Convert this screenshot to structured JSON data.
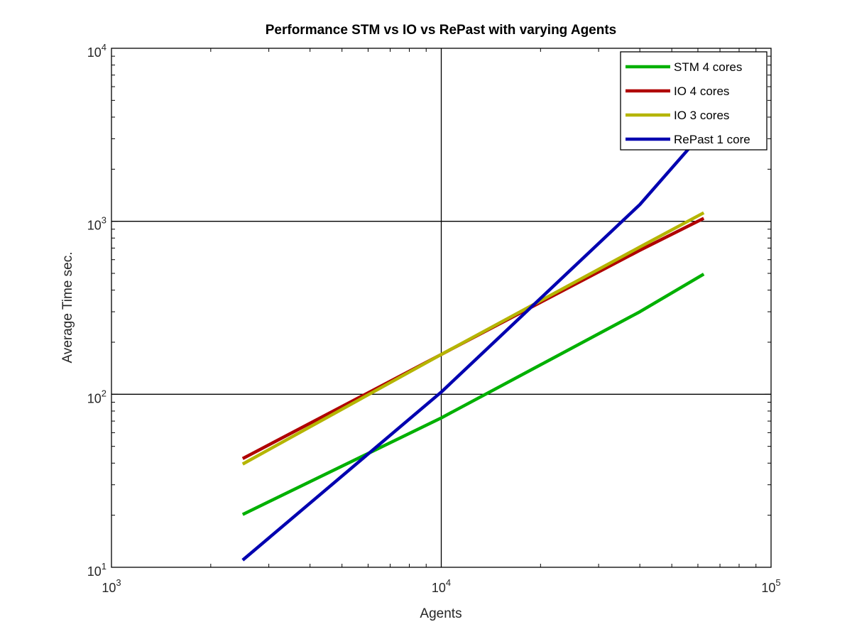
{
  "chart_data": {
    "type": "line",
    "title": "Performance STM vs IO vs RePast with varying Agents",
    "xlabel": "Agents",
    "ylabel": "Average Time sec.",
    "xscale": "log",
    "yscale": "log",
    "xlim": [
      1000,
      100000
    ],
    "ylim": [
      10,
      10000
    ],
    "grid": "major",
    "legend_position": "top-right",
    "x_ticks": [
      {
        "base": "10",
        "exp": "3",
        "value": 1000
      },
      {
        "base": "10",
        "exp": "4",
        "value": 10000
      },
      {
        "base": "10",
        "exp": "5",
        "value": 100000
      }
    ],
    "y_ticks": [
      {
        "base": "10",
        "exp": "1",
        "value": 10
      },
      {
        "base": "10",
        "exp": "2",
        "value": 100
      },
      {
        "base": "10",
        "exp": "3",
        "value": 1000
      },
      {
        "base": "10",
        "exp": "4",
        "value": 10000
      }
    ],
    "series": [
      {
        "name": "STM 4 cores",
        "color": "#00b000",
        "points": [
          [
            2500,
            20.2
          ],
          [
            10000,
            73
          ],
          [
            40000,
            300
          ],
          [
            62500,
            495
          ]
        ]
      },
      {
        "name": "IO 4 cores",
        "color": "#b00000",
        "points": [
          [
            2500,
            42.5
          ],
          [
            10000,
            170
          ],
          [
            40000,
            680
          ],
          [
            62500,
            1040
          ]
        ]
      },
      {
        "name": "IO 3 cores",
        "color": "#b5b500",
        "points": [
          [
            2500,
            39.5
          ],
          [
            10000,
            170
          ],
          [
            40000,
            710
          ],
          [
            62500,
            1120
          ]
        ]
      },
      {
        "name": "RePast 1 core",
        "color": "#0000b0",
        "points": [
          [
            2500,
            11
          ],
          [
            10000,
            103
          ],
          [
            40000,
            1250
          ],
          [
            62500,
            3300
          ]
        ]
      }
    ]
  }
}
